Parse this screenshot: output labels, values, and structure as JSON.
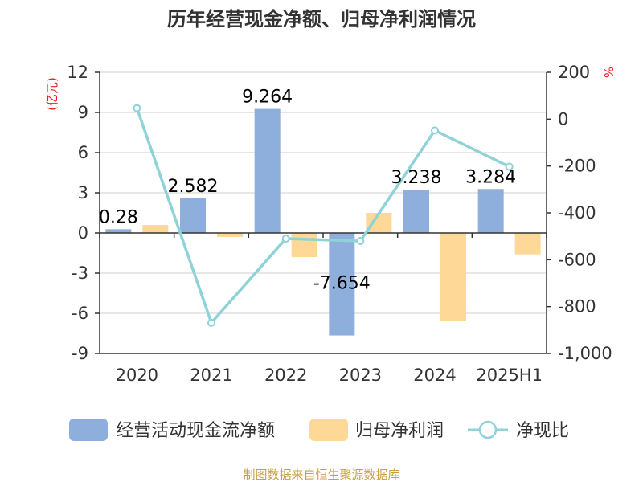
{
  "title": "历年经营现金净额、归母净利润情况",
  "source": "制图数据来自恒生聚源数据库",
  "chart_data": {
    "type": "bar",
    "categories": [
      "2020",
      "2021",
      "2022",
      "2023",
      "2024",
      "2025H1"
    ],
    "series": [
      {
        "name": "经营活动现金流净额",
        "type": "bar",
        "axis": "left",
        "color": "#8eaedb",
        "values": [
          0.28,
          2.582,
          9.264,
          -7.654,
          3.238,
          3.284
        ]
      },
      {
        "name": "归母净利润",
        "type": "bar",
        "axis": "left",
        "color": "#fdd896",
        "values": [
          0.6,
          -0.3,
          -1.8,
          1.5,
          -6.6,
          -1.6
        ]
      },
      {
        "name": "净现比",
        "type": "line",
        "axis": "right",
        "color": "#8fd3d8",
        "values": [
          47,
          -869,
          -510,
          -520,
          -48,
          -203
        ]
      }
    ],
    "data_labels": [
      "0.28",
      "2.582",
      "9.264",
      "-7.654",
      "3.238",
      "3.284"
    ],
    "left_axis": {
      "label": "(亿元)",
      "min": -9,
      "max": 12,
      "ticks": [
        12,
        9,
        6,
        3,
        0,
        -3,
        -6,
        -9
      ]
    },
    "right_axis": {
      "label": "%",
      "min": -1000,
      "max": 200,
      "ticks": [
        200,
        0,
        -200,
        -400,
        -600,
        -800,
        -1000
      ],
      "tick_labels": [
        "200",
        "0",
        "-200",
        "-400",
        "-600",
        "-800",
        "-1,000"
      ]
    },
    "grid": true,
    "legend_position": "bottom"
  }
}
